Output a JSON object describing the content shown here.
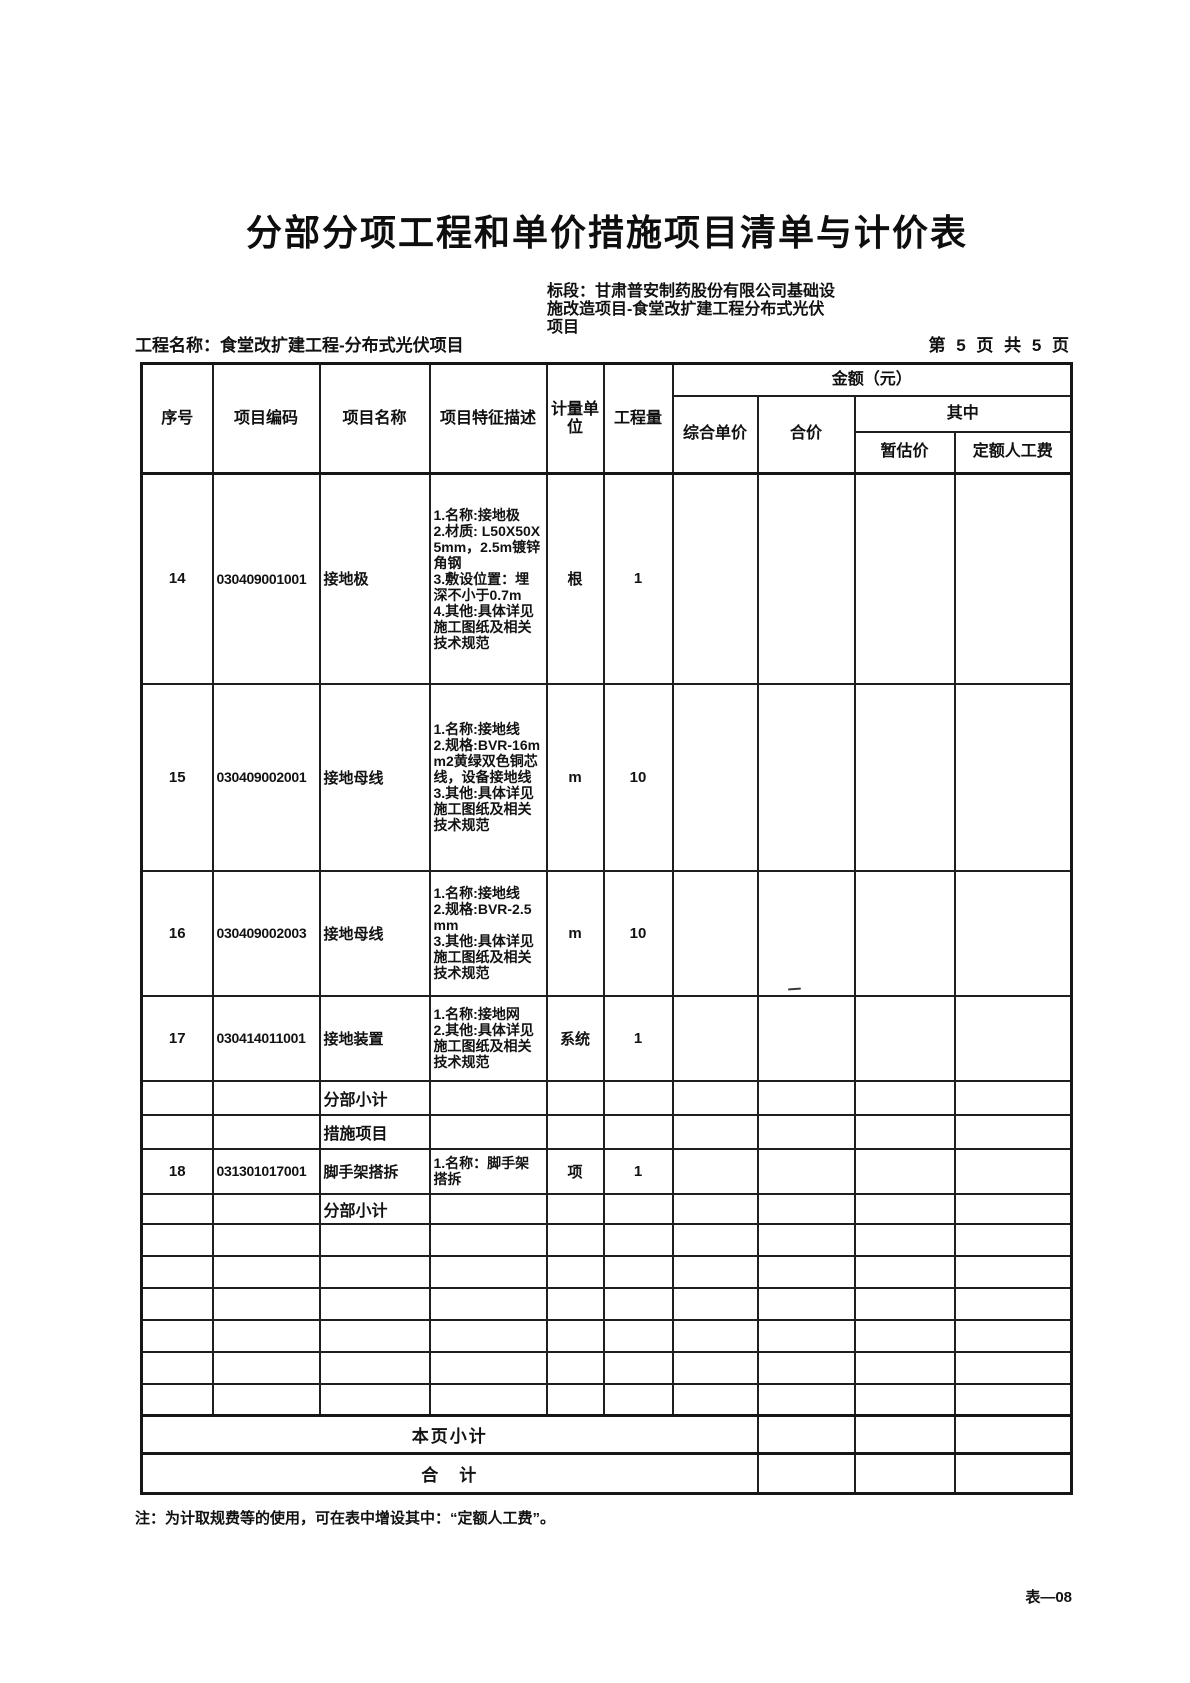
{
  "page": {
    "title": "分部分项工程和单价措施项目清单与计价表",
    "bid_section_lines": [
      "标段：甘肃普安制药股份有限公司基础设",
      "施改造项目-食堂改扩建工程分布式光伏",
      "项目"
    ],
    "project_name": "工程名称：食堂改扩建工程-分布式光伏项目",
    "page_indicator": "第 5 页  共 5 页",
    "note": "注：为计取规费等的使用，可在表中增设其中：“定额人工费”。",
    "form_code": "表—08"
  },
  "table": {
    "header": {
      "seq": "序号",
      "code": "项目编码",
      "name": "项目名称",
      "feature": "项目特征描述",
      "unit": "计量单位",
      "qty": "工程量",
      "amount": "金额（元）",
      "comp_unit_price": "综合单价",
      "total_price": "合价",
      "including": "其中",
      "provisional": "暂估价",
      "labor_fee": "定额人工费"
    },
    "rows": [
      {
        "type": "item",
        "seq": "14",
        "code": "030409001001",
        "name": "接地极",
        "features": [
          "1.名称:接地极",
          "2.材质: L50X50X5mm，2.5m镀锌角钢",
          "3.敷设位置：埋深不小于0.7m",
          "4.其他:具体详见施工图纸及相关技术规范"
        ],
        "unit": "根",
        "qty": "1"
      },
      {
        "type": "item",
        "seq": "15",
        "code": "030409002001",
        "name": "接地母线",
        "features": [
          "1.名称:接地线",
          "2.规格:BVR-16mm2黄绿双色铜芯线，设备接地线",
          "3.其他:具体详见施工图纸及相关技术规范"
        ],
        "unit": "m",
        "qty": "10"
      },
      {
        "type": "item",
        "seq": "16",
        "code": "030409002003",
        "name": "接地母线",
        "features": [
          "1.名称:接地线",
          "2.规格:BVR-2.5mm",
          "3.其他:具体详见施工图纸及相关技术规范"
        ],
        "unit": "m",
        "qty": "10"
      },
      {
        "type": "item",
        "seq": "17",
        "code": "030414011001",
        "name": "接地装置",
        "features": [
          "1.名称:接地网",
          "2.其他:具体详见施工图纸及相关技术规范"
        ],
        "unit": "系统",
        "qty": "1"
      },
      {
        "type": "label",
        "label": "分部小计"
      },
      {
        "type": "label",
        "label": "措施项目"
      },
      {
        "type": "item",
        "seq": "18",
        "code": "031301017001",
        "name": "脚手架搭拆",
        "features": [
          "1.名称：脚手架搭拆"
        ],
        "unit": "项",
        "qty": "1"
      },
      {
        "type": "label",
        "label": "分部小计"
      },
      {
        "type": "empty"
      },
      {
        "type": "empty"
      },
      {
        "type": "empty"
      },
      {
        "type": "empty"
      },
      {
        "type": "empty"
      },
      {
        "type": "empty"
      },
      {
        "type": "summary",
        "label": "本页小计"
      },
      {
        "type": "summary",
        "label": "合　计"
      }
    ]
  }
}
